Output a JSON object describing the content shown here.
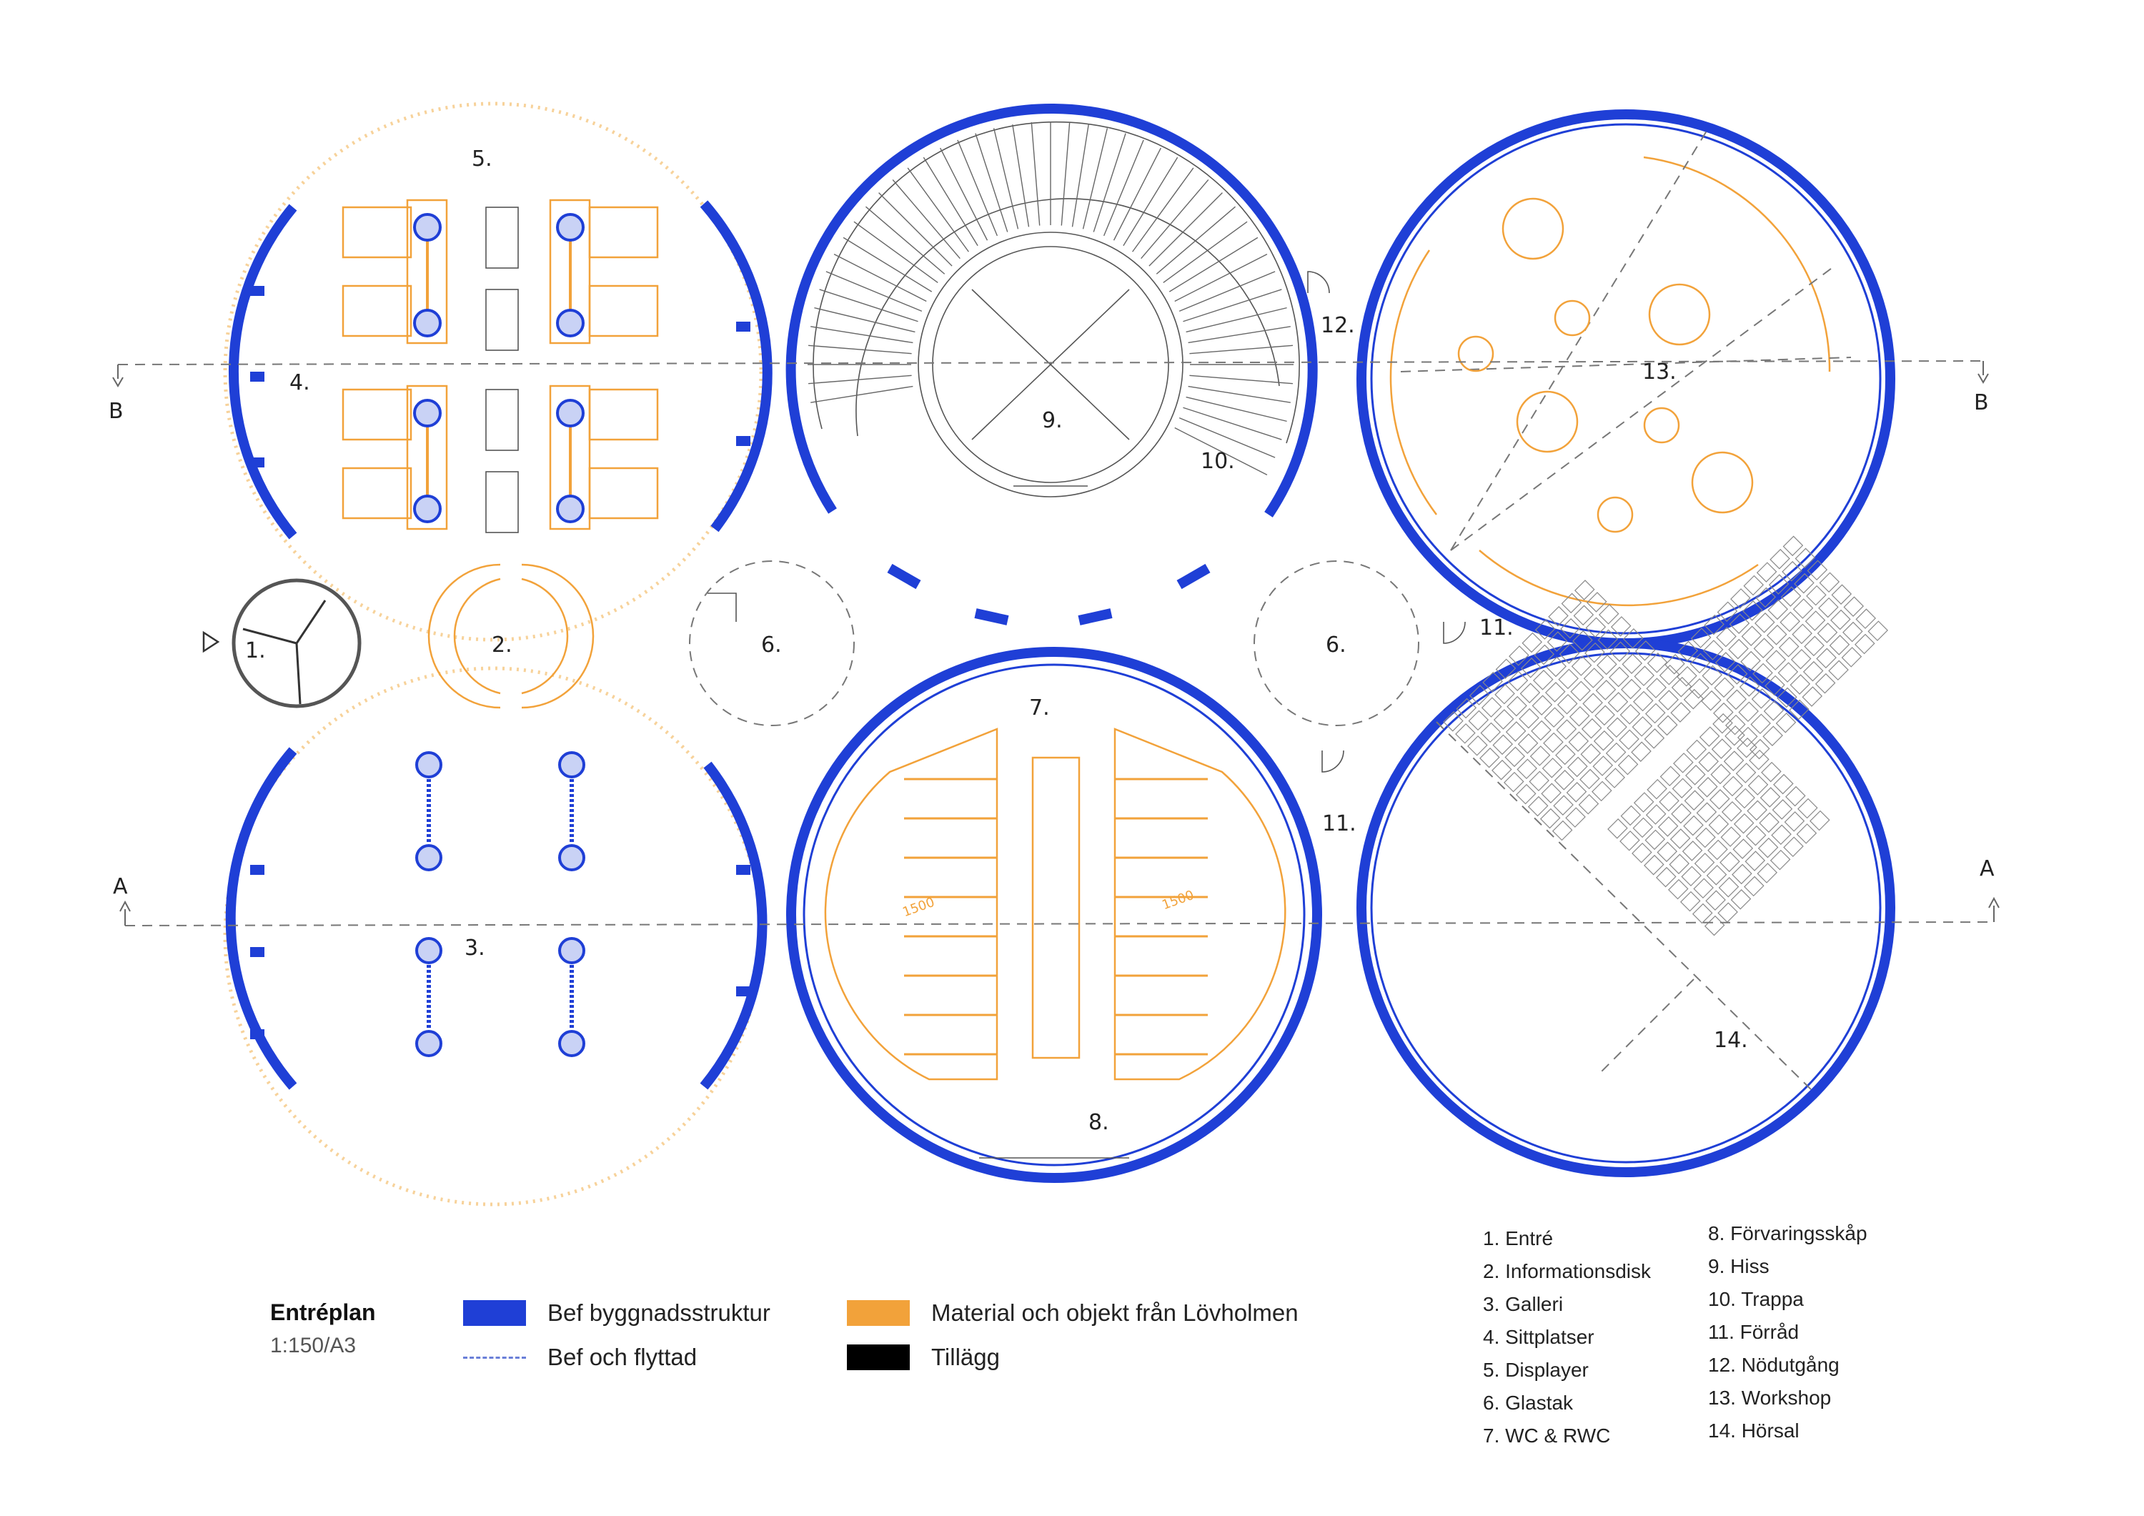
{
  "plan": {
    "title": "Entréplan",
    "scale": "1:150/A3",
    "room_labels": [
      "1.",
      "2.",
      "3.",
      "4.",
      "5.",
      "6.",
      "6.",
      "7.",
      "8.",
      "9.",
      "10.",
      "11.",
      "11.",
      "12.",
      "13.",
      "14."
    ],
    "section_letters": [
      "B",
      "B",
      "A",
      "A"
    ],
    "door_dimension": "1500"
  },
  "legend": {
    "items": [
      {
        "label": "Bef byggnadsstruktur",
        "color": "#1f3fd6",
        "kind": "swatch"
      },
      {
        "label": "Bef och flyttad",
        "color": "#6a7fd8",
        "kind": "dashed"
      },
      {
        "label": "Material och objekt från Lövholmen",
        "color": "#f2a23a",
        "kind": "swatch"
      },
      {
        "label": "Tillägg",
        "color": "#000000",
        "kind": "swatch"
      }
    ]
  },
  "rooms": {
    "col1": [
      "1. Entré",
      "2. Informationsdisk",
      "3. Galleri",
      "4. Sittplatser",
      "5. Displayer",
      "6. Glastak",
      "7. WC & RWC"
    ],
    "col2": [
      "8. Förvaringsskåp",
      "9. Hiss",
      "10. Trappa",
      "11. Förråd",
      "12. Nödutgång",
      "13. Workshop",
      "14. Hörsal"
    ]
  },
  "colors": {
    "structure": "#1f3fd6",
    "material": "#f2a23a",
    "addition": "#000000"
  }
}
